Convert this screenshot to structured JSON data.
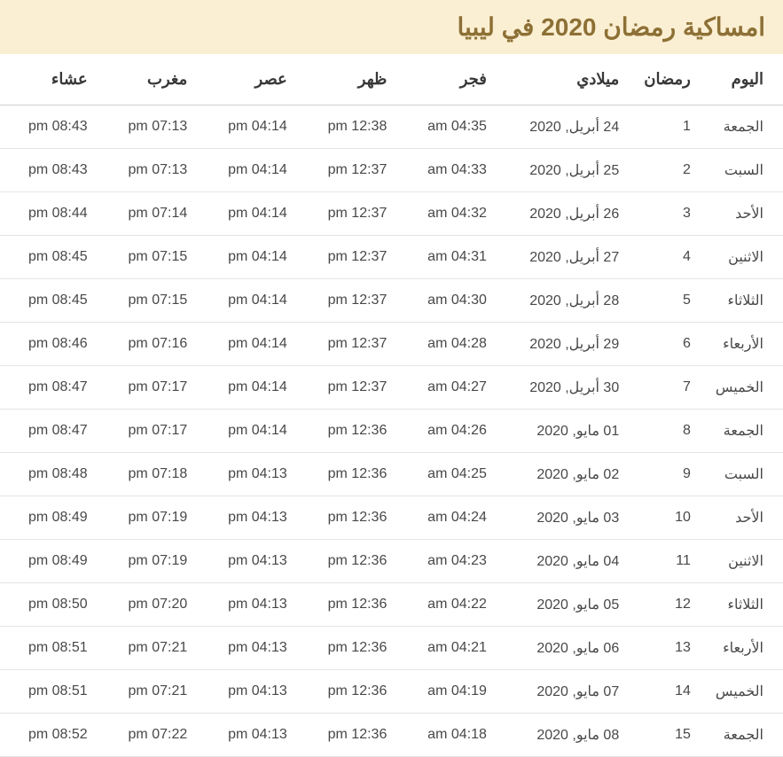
{
  "title": "امساكية رمضان 2020 في ليبيا",
  "colors": {
    "header_bg": "#fbefd3",
    "header_text": "#8d7035",
    "th_border": "#cfcfcf",
    "row_border": "#e4e4e4",
    "cell_text": "#484848",
    "th_text": "#383838",
    "page_bg": "#ffffff"
  },
  "typography": {
    "title_fontsize": 28,
    "th_fontsize": 18,
    "td_fontsize": 16,
    "font_family": "Arial, Segoe UI, Tahoma, sans-serif"
  },
  "columns": [
    "اليوم",
    "رمضان",
    "ميلادي",
    "فجر",
    "ظهر",
    "عصر",
    "مغرب",
    "عشاء"
  ],
  "column_widths_pct": [
    10,
    9,
    17,
    12.8,
    12.8,
    12.8,
    12.8,
    12.8
  ],
  "rows": [
    [
      "الجمعة",
      "1",
      "24 أبريل, 2020",
      "am 04:35",
      "pm 12:38",
      "pm 04:14",
      "pm 07:13",
      "pm 08:43"
    ],
    [
      "السبت",
      "2",
      "25 أبريل, 2020",
      "am 04:33",
      "pm 12:37",
      "pm 04:14",
      "pm 07:13",
      "pm 08:43"
    ],
    [
      "الأحد",
      "3",
      "26 أبريل, 2020",
      "am 04:32",
      "pm 12:37",
      "pm 04:14",
      "pm 07:14",
      "pm 08:44"
    ],
    [
      "الاثنين",
      "4",
      "27 أبريل, 2020",
      "am 04:31",
      "pm 12:37",
      "pm 04:14",
      "pm 07:15",
      "pm 08:45"
    ],
    [
      "الثلاثاء",
      "5",
      "28 أبريل, 2020",
      "am 04:30",
      "pm 12:37",
      "pm 04:14",
      "pm 07:15",
      "pm 08:45"
    ],
    [
      "الأربعاء",
      "6",
      "29 أبريل, 2020",
      "am 04:28",
      "pm 12:37",
      "pm 04:14",
      "pm 07:16",
      "pm 08:46"
    ],
    [
      "الخميس",
      "7",
      "30 أبريل, 2020",
      "am 04:27",
      "pm 12:37",
      "pm 04:14",
      "pm 07:17",
      "pm 08:47"
    ],
    [
      "الجمعة",
      "8",
      "01 مايو, 2020",
      "am 04:26",
      "pm 12:36",
      "pm 04:14",
      "pm 07:17",
      "pm 08:47"
    ],
    [
      "السبت",
      "9",
      "02 مايو, 2020",
      "am 04:25",
      "pm 12:36",
      "pm 04:13",
      "pm 07:18",
      "pm 08:48"
    ],
    [
      "الأحد",
      "10",
      "03 مايو, 2020",
      "am 04:24",
      "pm 12:36",
      "pm 04:13",
      "pm 07:19",
      "pm 08:49"
    ],
    [
      "الاثنين",
      "11",
      "04 مايو, 2020",
      "am 04:23",
      "pm 12:36",
      "pm 04:13",
      "pm 07:19",
      "pm 08:49"
    ],
    [
      "الثلاثاء",
      "12",
      "05 مايو, 2020",
      "am 04:22",
      "pm 12:36",
      "pm 04:13",
      "pm 07:20",
      "pm 08:50"
    ],
    [
      "الأربعاء",
      "13",
      "06 مايو, 2020",
      "am 04:21",
      "pm 12:36",
      "pm 04:13",
      "pm 07:21",
      "pm 08:51"
    ],
    [
      "الخميس",
      "14",
      "07 مايو, 2020",
      "am 04:19",
      "pm 12:36",
      "pm 04:13",
      "pm 07:21",
      "pm 08:51"
    ],
    [
      "الجمعة",
      "15",
      "08 مايو, 2020",
      "am 04:18",
      "pm 12:36",
      "pm 04:13",
      "pm 07:22",
      "pm 08:52"
    ]
  ]
}
